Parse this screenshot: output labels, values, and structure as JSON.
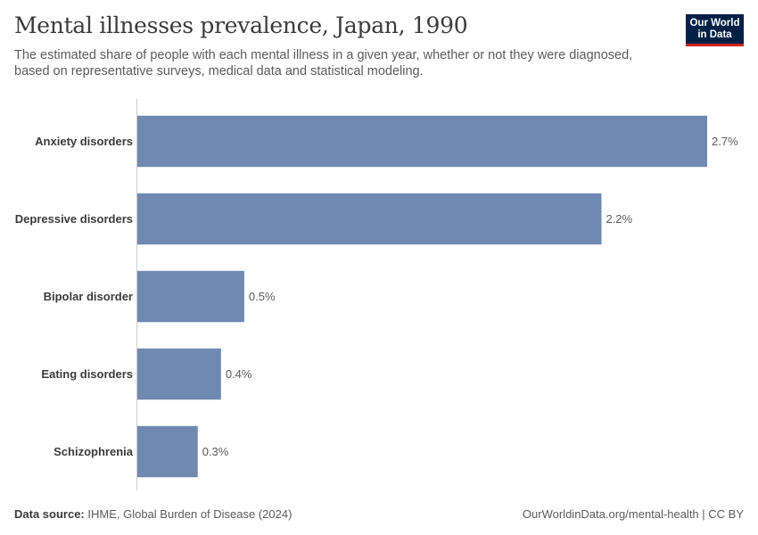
{
  "header": {
    "title": "Mental illnesses prevalence, Japan, 1990",
    "subtitle": "The estimated share of people with each mental illness in a given year, whether or not they were diagnosed, based on representative surveys, medical data and statistical modeling."
  },
  "logo": {
    "line1": "Our World",
    "line2": "in Data"
  },
  "footer": {
    "source_label": "Data source:",
    "source_text": "IHME, Global Burden of Disease (2024)",
    "url_license": "OurWorldinData.org/mental-health | CC BY"
  },
  "colors": {
    "bar": "#6f89b1",
    "axis": "#cccccc",
    "label": "#3b3b3b",
    "value": "#5b5b5b",
    "logo_bg": "#002147",
    "logo_accent": "#ce261e"
  },
  "chart_data": {
    "type": "bar",
    "orientation": "horizontal",
    "categories": [
      "Anxiety disorders",
      "Depressive disorders",
      "Bipolar disorder",
      "Eating disorders",
      "Schizophrenia"
    ],
    "values": [
      2.7,
      2.2,
      0.51,
      0.4,
      0.29
    ],
    "value_labels": [
      "2.7%",
      "2.2%",
      "0.5%",
      "0.4%",
      "0.3%"
    ],
    "unit": "%",
    "xlim": [
      0,
      2.7
    ]
  }
}
